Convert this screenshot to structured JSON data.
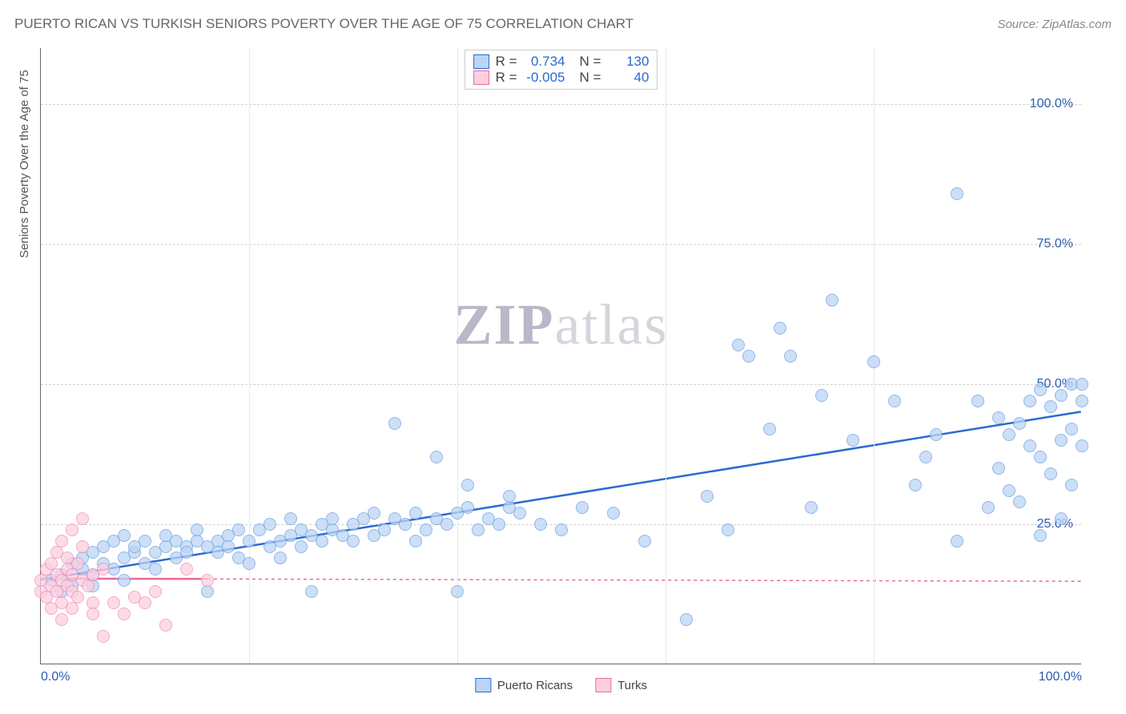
{
  "title": "PUERTO RICAN VS TURKISH SENIORS POVERTY OVER THE AGE OF 75 CORRELATION CHART",
  "source": "Source: ZipAtlas.com",
  "ylabel": "Seniors Poverty Over the Age of 75",
  "watermark_zip": "ZIP",
  "watermark_atlas": "atlas",
  "watermark_color_strong": "#b8b8c8",
  "watermark_color_light": "#d5d5dd",
  "chart": {
    "type": "scatter",
    "xlim": [
      0,
      100
    ],
    "ylim": [
      0,
      110
    ],
    "y_ticks": [
      25,
      50,
      75,
      100
    ],
    "y_tick_labels": [
      "25.0%",
      "50.0%",
      "75.0%",
      "100.0%"
    ],
    "x_ticks": [
      0,
      100
    ],
    "x_tick_labels": [
      "0.0%",
      "100.0%"
    ],
    "x_minor_ticks": [
      20,
      40,
      60,
      80
    ],
    "tick_color": "#2a5db0",
    "grid_color": "#d0d0d0",
    "axis_color": "#666666",
    "background_color": "#ffffff",
    "marker_radius": 8,
    "trend_line_width": 2.5
  },
  "legend_top": {
    "rows": [
      {
        "swatch_fill": "#bcd5f5",
        "swatch_border": "#2a6ad0",
        "R_label": "R =",
        "R": "0.734",
        "N_label": "N =",
        "N": "130",
        "val_color": "#2a6ad0"
      },
      {
        "swatch_fill": "#fccfe0",
        "swatch_border": "#e86aa0",
        "R_label": "R =",
        "R": "-0.005",
        "N_label": "N =",
        "N": "40",
        "val_color": "#2a6ad0"
      }
    ]
  },
  "legend_bottom": {
    "items": [
      {
        "label": "Puerto Ricans",
        "swatch_fill": "#bcd5f5",
        "swatch_border": "#2a6ad0"
      },
      {
        "label": "Turks",
        "swatch_fill": "#fccfe0",
        "swatch_border": "#e86aa0"
      }
    ]
  },
  "series": [
    {
      "name": "Puerto Ricans",
      "fill": "#bcd5f5",
      "border": "#6aa0e0",
      "opacity": 0.75,
      "trend": {
        "x1": 0,
        "y1": 15,
        "x2": 100,
        "y2": 45,
        "color": "#2a6ad0",
        "dash": "none"
      },
      "points": [
        [
          1,
          15
        ],
        [
          2,
          16
        ],
        [
          2,
          13
        ],
        [
          3,
          18
        ],
        [
          3,
          14
        ],
        [
          4,
          17
        ],
        [
          4,
          19
        ],
        [
          5,
          16
        ],
        [
          5,
          20
        ],
        [
          5,
          14
        ],
        [
          6,
          18
        ],
        [
          6,
          21
        ],
        [
          7,
          17
        ],
        [
          7,
          22
        ],
        [
          8,
          19
        ],
        [
          8,
          23
        ],
        [
          8,
          15
        ],
        [
          9,
          20
        ],
        [
          9,
          21
        ],
        [
          10,
          18
        ],
        [
          10,
          22
        ],
        [
          11,
          20
        ],
        [
          11,
          17
        ],
        [
          12,
          21
        ],
        [
          12,
          23
        ],
        [
          13,
          19
        ],
        [
          13,
          22
        ],
        [
          14,
          21
        ],
        [
          14,
          20
        ],
        [
          15,
          22
        ],
        [
          15,
          24
        ],
        [
          16,
          13
        ],
        [
          16,
          21
        ],
        [
          17,
          22
        ],
        [
          17,
          20
        ],
        [
          18,
          23
        ],
        [
          18,
          21
        ],
        [
          19,
          19
        ],
        [
          19,
          24
        ],
        [
          20,
          22
        ],
        [
          20,
          18
        ],
        [
          21,
          24
        ],
        [
          22,
          21
        ],
        [
          22,
          25
        ],
        [
          23,
          22
        ],
        [
          23,
          19
        ],
        [
          24,
          23
        ],
        [
          24,
          26
        ],
        [
          25,
          21
        ],
        [
          25,
          24
        ],
        [
          26,
          23
        ],
        [
          26,
          13
        ],
        [
          27,
          25
        ],
        [
          27,
          22
        ],
        [
          28,
          24
        ],
        [
          28,
          26
        ],
        [
          29,
          23
        ],
        [
          30,
          25
        ],
        [
          30,
          22
        ],
        [
          31,
          26
        ],
        [
          32,
          23
        ],
        [
          32,
          27
        ],
        [
          33,
          24
        ],
        [
          34,
          43
        ],
        [
          34,
          26
        ],
        [
          35,
          25
        ],
        [
          36,
          27
        ],
        [
          36,
          22
        ],
        [
          37,
          24
        ],
        [
          38,
          26
        ],
        [
          38,
          37
        ],
        [
          39,
          25
        ],
        [
          40,
          27
        ],
        [
          40,
          13
        ],
        [
          41,
          28
        ],
        [
          41,
          32
        ],
        [
          42,
          24
        ],
        [
          43,
          26
        ],
        [
          44,
          25
        ],
        [
          45,
          28
        ],
        [
          45,
          30
        ],
        [
          46,
          27
        ],
        [
          48,
          25
        ],
        [
          50,
          24
        ],
        [
          52,
          28
        ],
        [
          55,
          27
        ],
        [
          58,
          22
        ],
        [
          62,
          8
        ],
        [
          64,
          30
        ],
        [
          66,
          24
        ],
        [
          67,
          57
        ],
        [
          68,
          55
        ],
        [
          70,
          42
        ],
        [
          71,
          60
        ],
        [
          72,
          55
        ],
        [
          74,
          28
        ],
        [
          75,
          48
        ],
        [
          76,
          65
        ],
        [
          78,
          40
        ],
        [
          80,
          54
        ],
        [
          82,
          47
        ],
        [
          84,
          32
        ],
        [
          85,
          37
        ],
        [
          86,
          41
        ],
        [
          88,
          84
        ],
        [
          90,
          47
        ],
        [
          91,
          28
        ],
        [
          92,
          35
        ],
        [
          92,
          44
        ],
        [
          93,
          41
        ],
        [
          93,
          31
        ],
        [
          94,
          29
        ],
        [
          94,
          43
        ],
        [
          95,
          39
        ],
        [
          95,
          47
        ],
        [
          96,
          37
        ],
        [
          96,
          49
        ],
        [
          97,
          46
        ],
        [
          97,
          34
        ],
        [
          98,
          48
        ],
        [
          98,
          40
        ],
        [
          99,
          50
        ],
        [
          99,
          42
        ],
        [
          99,
          32
        ],
        [
          100,
          47
        ],
        [
          100,
          39
        ],
        [
          100,
          50
        ],
        [
          98,
          26
        ],
        [
          96,
          23
        ],
        [
          88,
          22
        ]
      ]
    },
    {
      "name": "Turks",
      "fill": "#fccfe0",
      "border": "#f08db5",
      "opacity": 0.75,
      "trend": {
        "x1": 0,
        "y1": 15.2,
        "x2": 100,
        "y2": 14.7,
        "color": "#e86aa0",
        "dash": "4 4",
        "solid_until": 16
      },
      "points": [
        [
          0,
          15
        ],
        [
          0,
          13
        ],
        [
          0.5,
          17
        ],
        [
          0.5,
          12
        ],
        [
          1,
          18
        ],
        [
          1,
          14
        ],
        [
          1,
          10
        ],
        [
          1.5,
          20
        ],
        [
          1.5,
          16
        ],
        [
          1.5,
          13
        ],
        [
          2,
          22
        ],
        [
          2,
          15
        ],
        [
          2,
          11
        ],
        [
          2,
          8
        ],
        [
          2.5,
          19
        ],
        [
          2.5,
          14
        ],
        [
          2.5,
          17
        ],
        [
          3,
          24
        ],
        [
          3,
          13
        ],
        [
          3,
          16
        ],
        [
          3,
          10
        ],
        [
          3.5,
          18
        ],
        [
          3.5,
          12
        ],
        [
          4,
          21
        ],
        [
          4,
          15
        ],
        [
          4,
          26
        ],
        [
          4.5,
          14
        ],
        [
          5,
          16
        ],
        [
          5,
          11
        ],
        [
          5,
          9
        ],
        [
          6,
          17
        ],
        [
          6,
          5
        ],
        [
          7,
          11
        ],
        [
          8,
          9
        ],
        [
          9,
          12
        ],
        [
          10,
          11
        ],
        [
          11,
          13
        ],
        [
          12,
          7
        ],
        [
          14,
          17
        ],
        [
          16,
          15
        ]
      ]
    }
  ]
}
